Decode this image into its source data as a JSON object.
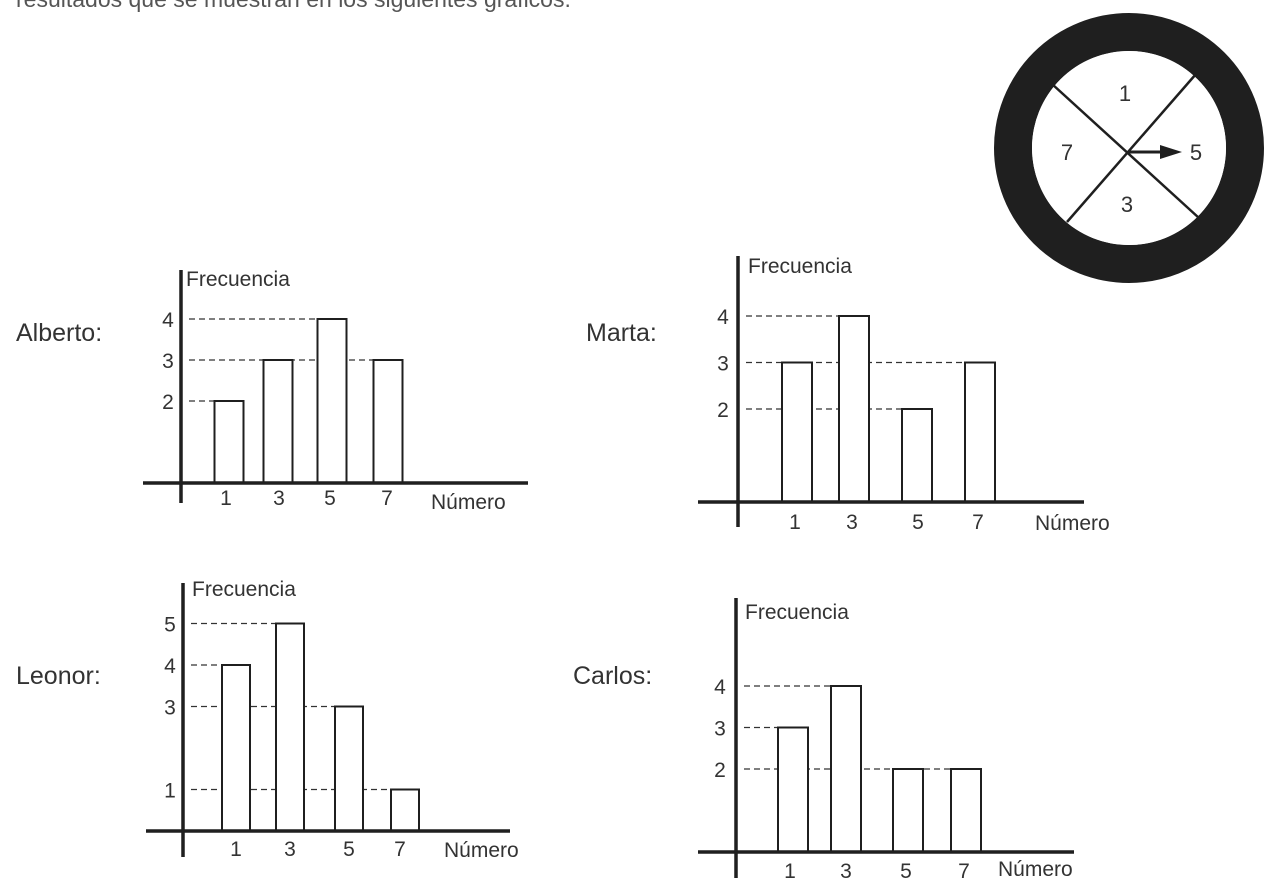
{
  "intro_text": "resultados que se muestran en los siguientes gráficos.",
  "spinner": {
    "sector_labels": [
      "1",
      "5",
      "3",
      "7"
    ],
    "arrow_points_to": "5"
  },
  "chart_data": [
    {
      "type": "bar",
      "person": "Alberto:",
      "ylabel": "Frecuencia",
      "xlabel": "Número",
      "categories": [
        "1",
        "3",
        "5",
        "7"
      ],
      "values": [
        2,
        3,
        4,
        3
      ],
      "ytick_labels": [
        "2",
        "3",
        "4"
      ],
      "ylim": [
        0,
        4.5
      ]
    },
    {
      "type": "bar",
      "person": "Marta:",
      "ylabel": "Frecuencia",
      "xlabel": "Número",
      "categories": [
        "1",
        "3",
        "5",
        "7"
      ],
      "values": [
        3,
        4,
        2,
        3
      ],
      "ytick_labels": [
        "2",
        "3",
        "4"
      ],
      "ylim": [
        0,
        5
      ]
    },
    {
      "type": "bar",
      "person": "Leonor:",
      "ylabel": "Frecuencia",
      "xlabel": "Número",
      "categories": [
        "1",
        "3",
        "5",
        "7"
      ],
      "values": [
        4,
        5,
        3,
        1
      ],
      "ytick_labels": [
        "1",
        "3",
        "4",
        "5"
      ],
      "ylim": [
        0,
        5.5
      ]
    },
    {
      "type": "bar",
      "person": "Carlos:",
      "ylabel": "Frecuencia",
      "xlabel": "Número",
      "categories": [
        "1",
        "3",
        "5",
        "7"
      ],
      "values": [
        3,
        4,
        2,
        2
      ],
      "ytick_labels": [
        "2",
        "3",
        "4"
      ],
      "ylim": [
        0,
        6
      ]
    }
  ]
}
